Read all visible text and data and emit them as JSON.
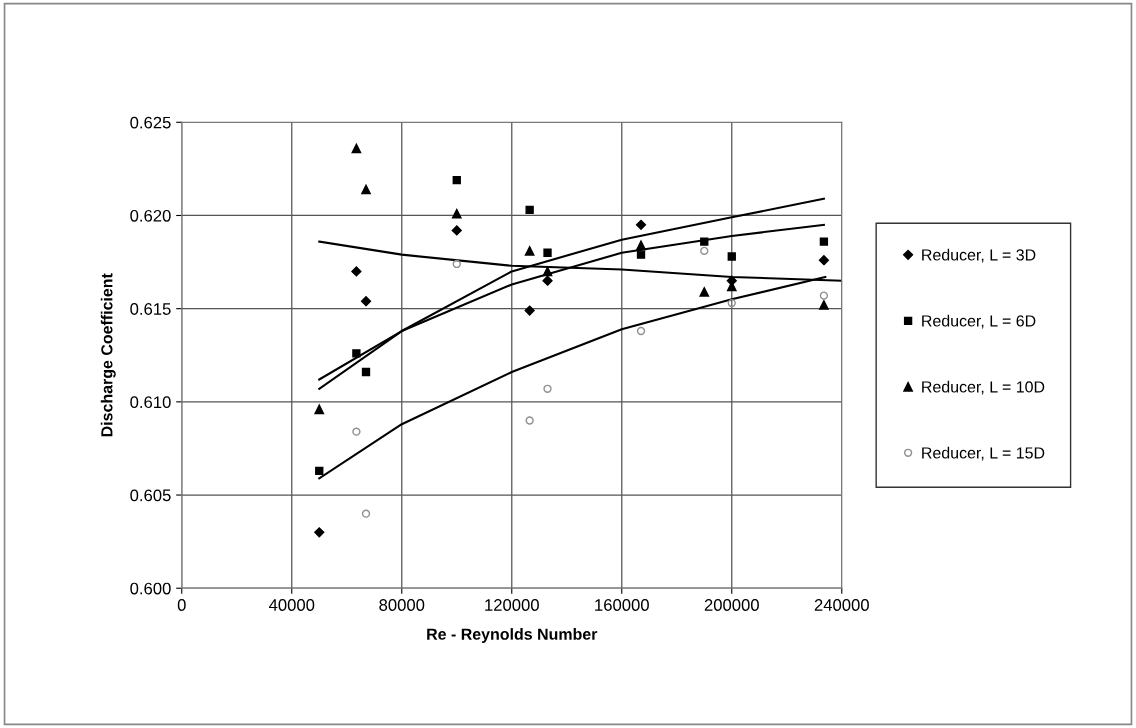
{
  "chart_data": {
    "type": "scatter",
    "xlabel": "Re - Reynolds Number",
    "ylabel": "Discharge Coefficient",
    "x": [
      50000,
      63500,
      67000,
      100000,
      126500,
      133000,
      167000,
      190000,
      200000,
      233500
    ],
    "series": [
      {
        "name": "Reducer, L = 3D",
        "color": "#000000",
        "marker": "diamond",
        "values": [
          0.603,
          0.617,
          0.6154,
          0.6192,
          0.6149,
          0.6165,
          0.6195,
          null,
          0.6165,
          0.6176
        ]
      },
      {
        "name": "Reducer, L = 6D",
        "color": "#000000",
        "marker": "square",
        "values": [
          0.6063,
          0.6126,
          0.6116,
          0.6219,
          0.6203,
          0.618,
          0.6179,
          0.6186,
          0.6178,
          0.6186
        ]
      },
      {
        "name": "Reducer, L = 10D",
        "color": "#000000",
        "marker": "triangle",
        "values": [
          0.6096,
          0.6236,
          0.6214,
          0.6201,
          0.6181,
          0.617,
          0.6184,
          0.6159,
          0.6162,
          0.6152
        ]
      },
      {
        "name": "Reducer, L = 15D",
        "color": "#909090",
        "marker": "circle",
        "values": [
          null,
          0.6084,
          0.604,
          0.6174,
          0.609,
          0.6107,
          0.6138,
          0.6181,
          0.6153,
          0.6157
        ]
      },
      {
        "type": "line",
        "color": "#000000",
        "marker": "none",
        "x": [
          50000,
          80000,
          120000,
          160000,
          200000,
          240000
        ],
        "values": [
          0.6186,
          0.6179,
          0.6173,
          0.6171,
          0.6167,
          0.6165
        ]
      },
      {
        "type": "line",
        "color": "#000000",
        "marker": "none",
        "x": [
          50000,
          80000,
          120000,
          160000,
          200000,
          233500
        ],
        "values": [
          0.6107,
          0.6138,
          0.617,
          0.6187,
          0.6199,
          0.6209
        ]
      },
      {
        "type": "line",
        "color": "#000000",
        "marker": "none",
        "x": [
          50000,
          80000,
          120000,
          160000,
          200000,
          233500
        ],
        "values": [
          0.6112,
          0.6138,
          0.6163,
          0.618,
          0.6189,
          0.6195
        ]
      },
      {
        "type": "line",
        "color": "#000000",
        "marker": "none",
        "x": [
          50000,
          80000,
          120000,
          160000,
          200000,
          234000
        ],
        "values": [
          0.6059,
          0.6088,
          0.6116,
          0.6139,
          0.6155,
          0.6167
        ]
      }
    ],
    "xlim": [
      0,
      240000
    ],
    "xticks": [
      0,
      40000,
      80000,
      120000,
      160000,
      200000,
      240000
    ],
    "ylim": [
      0.6,
      0.625
    ],
    "yticks": [
      {
        "value": 0.6,
        "label": "0.600"
      },
      {
        "value": 0.605,
        "label": "0.605"
      },
      {
        "value": 0.61,
        "label": "0.610"
      },
      {
        "value": 0.615,
        "label": "0.615"
      },
      {
        "value": 0.62,
        "label": "0.620"
      },
      {
        "value": 0.625,
        "label": "0.625"
      }
    ],
    "grid": true,
    "legend": "right"
  }
}
